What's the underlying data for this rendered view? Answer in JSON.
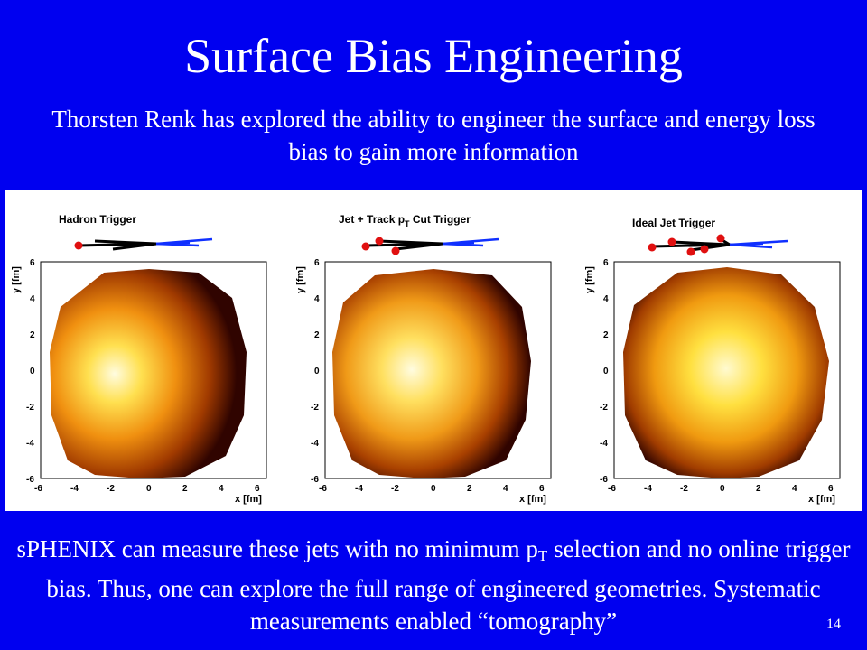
{
  "slide": {
    "title": "Surface Bias Engineering",
    "subtitle": "Thorsten Renk has explored the ability to engineer the surface and energy loss bias to gain more information",
    "footer_part1": "sPHENIX can measure these jets with no minimum p",
    "footer_sub": "T",
    "footer_part2": " selection and no online trigger bias. Thus, one can explore the full range of engineered geometries. Systematic measurements enabled “tomography”",
    "page_number": "14"
  },
  "panels": [
    {
      "label": "Hadron Trigger",
      "label_sub": "",
      "label_suffix": "",
      "x_axis": "x [fm]",
      "y_axis": "y [fm]"
    },
    {
      "label": "Jet + Track p",
      "label_sub": "T",
      "label_suffix": " Cut Trigger",
      "x_axis": "x [fm]",
      "y_axis": "y [fm]"
    },
    {
      "label": "Ideal Jet Trigger",
      "label_sub": "",
      "label_suffix": "",
      "x_axis": "x [fm]",
      "y_axis": "y [fm]"
    }
  ],
  "axis_ticks": {
    "x": [
      "-6",
      "-4",
      "-2",
      "0",
      "2",
      "4",
      "6"
    ],
    "y": [
      "6",
      "4",
      "2",
      "0",
      "-2",
      "-4",
      "-6"
    ]
  },
  "colors": {
    "background": "#0000f0",
    "heat_hot": "#fff8a0",
    "heat_mid": "#ffb020",
    "heat_cool": "#b84800",
    "heat_edge": "#2a0500",
    "jet_black": "#000000",
    "jet_blue": "#1030ff",
    "jet_red": "#e01010"
  }
}
